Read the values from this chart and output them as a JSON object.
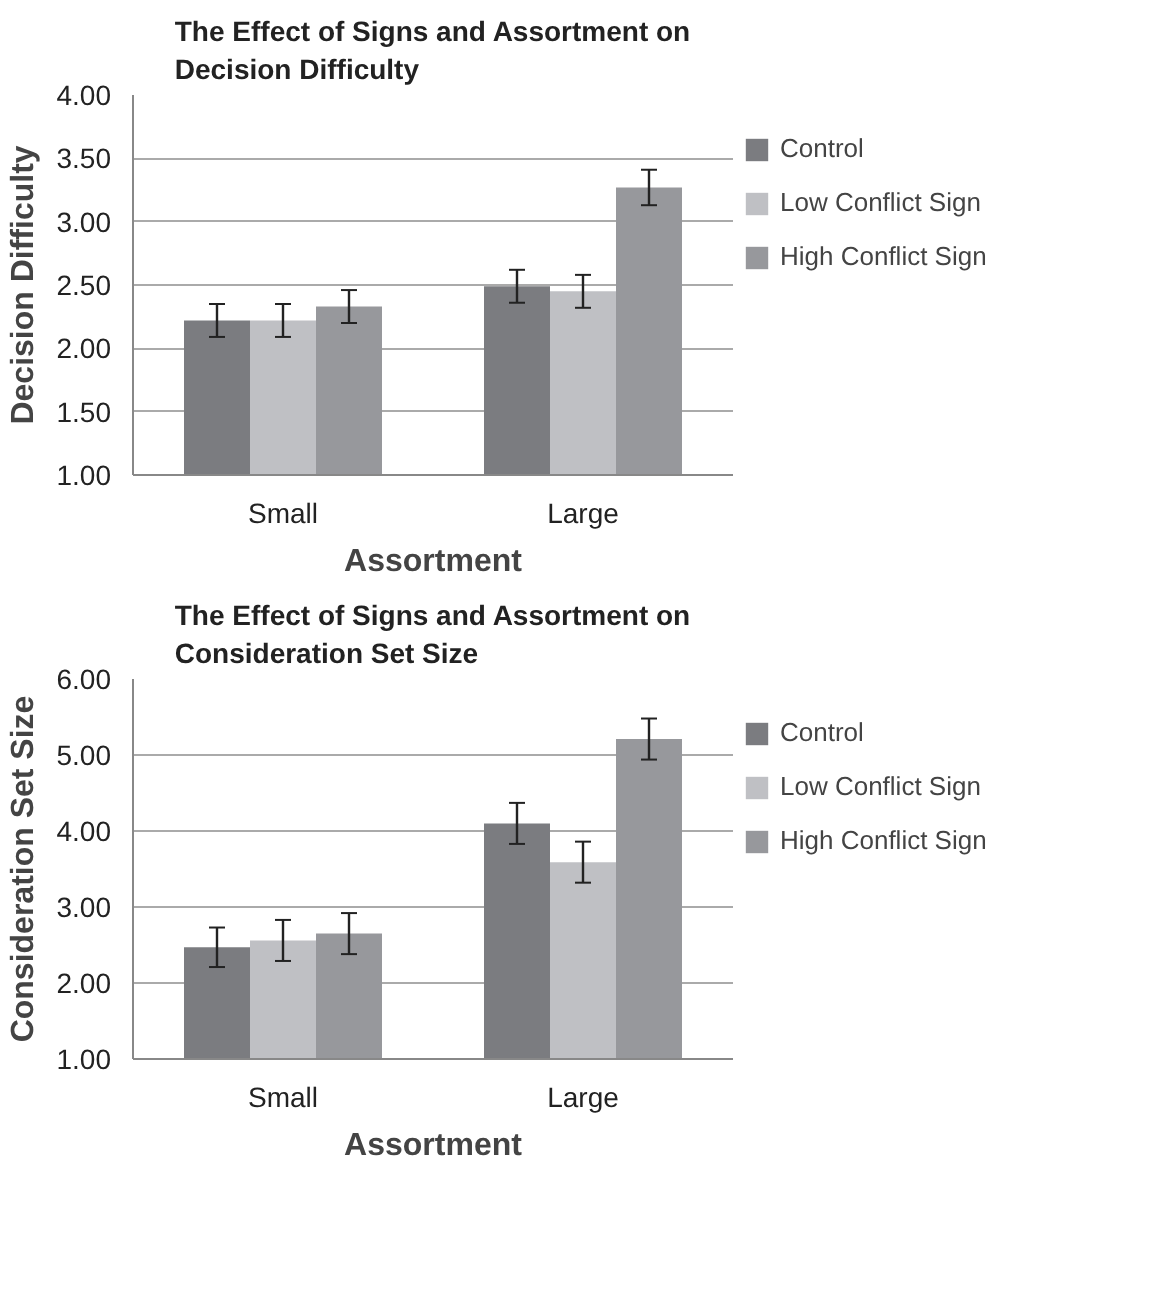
{
  "chart_data": [
    {
      "type": "bar",
      "title": "The Effect of Signs and Assortment on Decision Difficulty",
      "xlabel": "Assortment",
      "ylabel": "Decision Difficulty",
      "categories": [
        "Small",
        "Large"
      ],
      "series": [
        {
          "name": "Control",
          "color": "#7b7c80",
          "values": [
            2.22,
            2.49
          ],
          "errors": [
            0.13,
            0.13
          ]
        },
        {
          "name": "Low Conflict Sign",
          "color": "#bfc0c4",
          "values": [
            2.22,
            2.45
          ],
          "errors": [
            0.13,
            0.13
          ]
        },
        {
          "name": "High Conflict Sign",
          "color": "#97989c",
          "values": [
            2.33,
            3.27
          ],
          "errors": [
            0.13,
            0.14
          ]
        }
      ],
      "ylim": [
        1,
        4
      ],
      "yticks": [
        {
          "value": 1,
          "label": "1.00"
        },
        {
          "value": 1.5,
          "label": "1.50"
        },
        {
          "value": 2,
          "label": "2.00"
        },
        {
          "value": 2.5,
          "label": "2.50"
        },
        {
          "value": 3,
          "label": "3.00"
        },
        {
          "value": 3.5,
          "label": "3.50"
        },
        {
          "value": 4,
          "label": "4.00"
        }
      ],
      "grid": "y",
      "legend": "right"
    },
    {
      "type": "bar",
      "title": "The Effect of Signs and Assortment on Consideration Set Size",
      "xlabel": "Assortment",
      "ylabel": "Consideration Set Size",
      "categories": [
        "Small",
        "Large"
      ],
      "series": [
        {
          "name": "Control",
          "color": "#7b7c80",
          "values": [
            2.47,
            4.1
          ],
          "errors": [
            0.26,
            0.27
          ]
        },
        {
          "name": "Low Conflict Sign",
          "color": "#bfc0c4",
          "values": [
            2.56,
            3.59
          ],
          "errors": [
            0.27,
            0.27
          ]
        },
        {
          "name": "High Conflict Sign",
          "color": "#97989c",
          "values": [
            2.65,
            5.21
          ],
          "errors": [
            0.27,
            0.27
          ]
        }
      ],
      "ylim": [
        1,
        6
      ],
      "yticks": [
        {
          "value": 1,
          "label": "1.00"
        },
        {
          "value": 2,
          "label": "2.00"
        },
        {
          "value": 3,
          "label": "3.00"
        },
        {
          "value": 4,
          "label": "4.00"
        },
        {
          "value": 5,
          "label": "5.00"
        },
        {
          "value": 6,
          "label": "6.00"
        }
      ],
      "grid": "y",
      "legend": "right"
    }
  ]
}
